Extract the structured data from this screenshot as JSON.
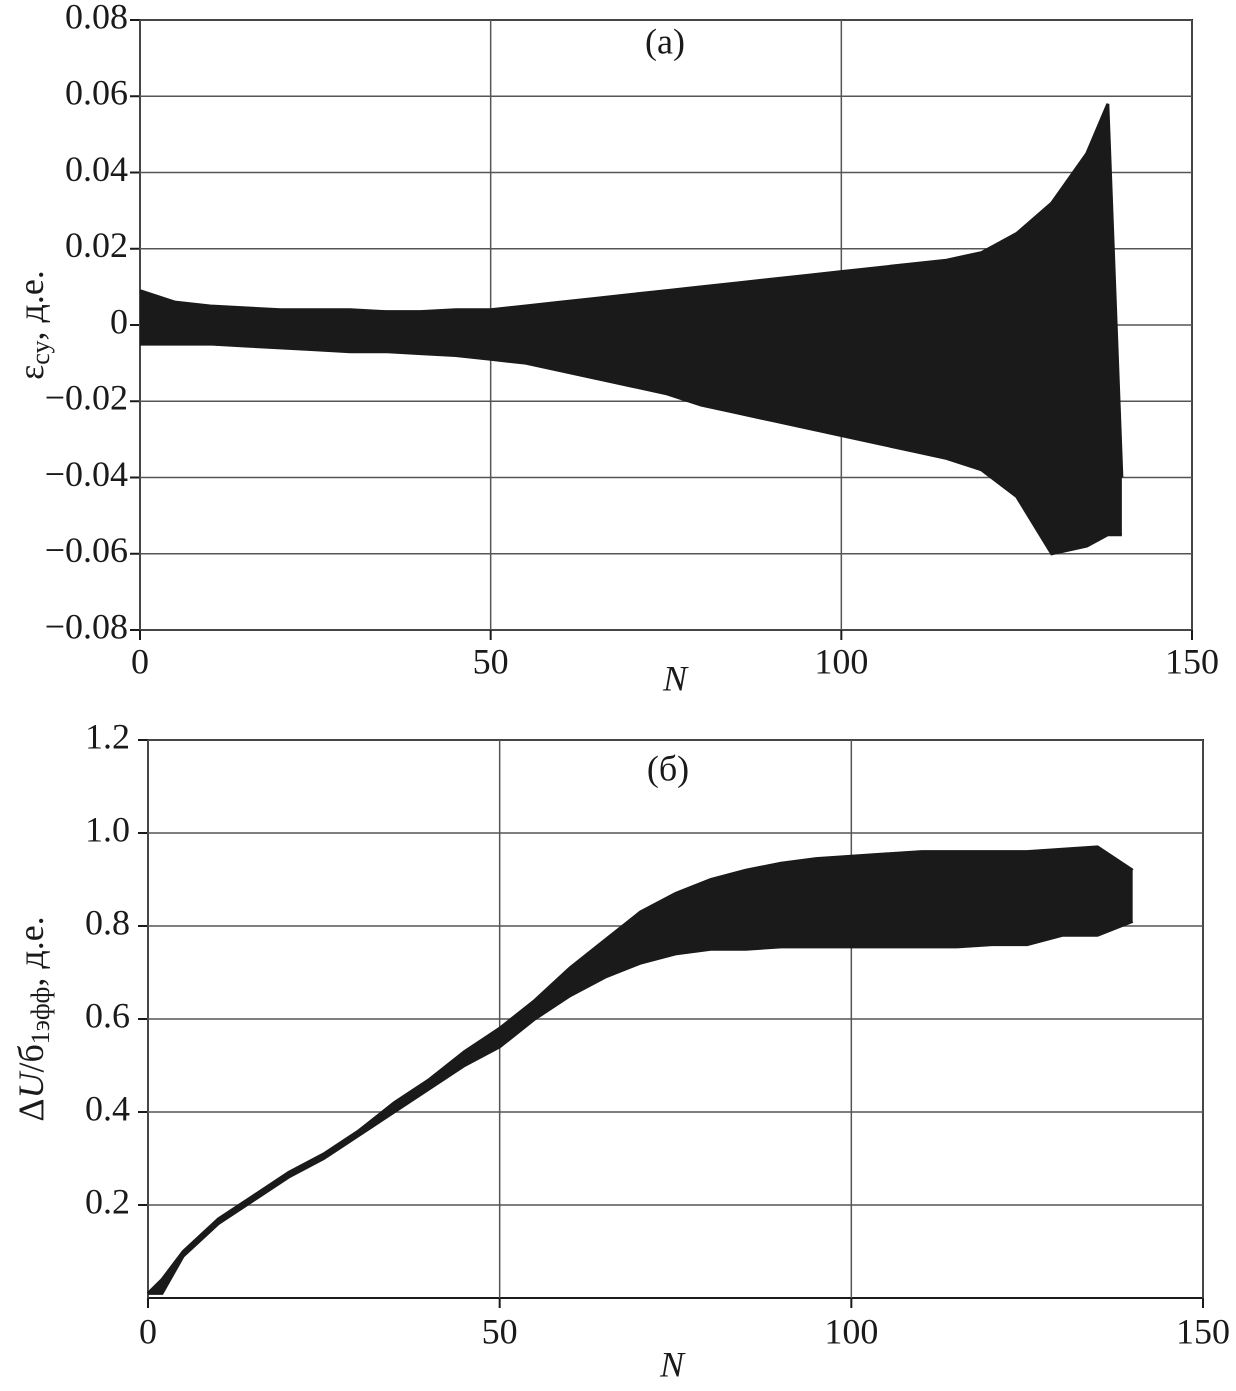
{
  "chart_data": [
    {
      "type": "band",
      "annotation": "(a)",
      "xlabel": "N",
      "ylabel": [
        {
          "text": "ε"
        },
        {
          "text": "су",
          "sub": true
        },
        {
          "text": ", д.е."
        }
      ],
      "color": "#1a1a1a",
      "x": [
        0,
        5,
        10,
        15,
        20,
        25,
        30,
        35,
        40,
        45,
        50,
        55,
        60,
        65,
        70,
        75,
        80,
        85,
        90,
        95,
        100,
        105,
        110,
        115,
        120,
        125,
        130,
        135,
        138,
        140
      ],
      "upper": [
        0.009,
        0.006,
        0.005,
        0.0045,
        0.004,
        0.004,
        0.004,
        0.0035,
        0.0035,
        0.004,
        0.004,
        0.005,
        0.006,
        0.007,
        0.008,
        0.009,
        0.01,
        0.011,
        0.012,
        0.013,
        0.014,
        0.015,
        0.016,
        0.017,
        0.019,
        0.024,
        0.032,
        0.045,
        0.058,
        -0.04
      ],
      "lower": [
        -0.005,
        -0.005,
        -0.005,
        -0.0055,
        -0.006,
        -0.0065,
        -0.007,
        -0.007,
        -0.0075,
        -0.008,
        -0.009,
        -0.01,
        -0.012,
        -0.014,
        -0.016,
        -0.018,
        -0.021,
        -0.023,
        -0.025,
        -0.027,
        -0.029,
        -0.031,
        -0.033,
        -0.035,
        -0.038,
        -0.045,
        -0.06,
        -0.058,
        -0.055,
        -0.055
      ],
      "xlim": [
        0,
        150
      ],
      "xticks": [
        0,
        50,
        100,
        150
      ],
      "ylim": [
        -0.08,
        0.08
      ],
      "yticks": [
        {
          "value": -0.08,
          "label": "−0.08"
        },
        {
          "value": -0.06,
          "label": "−0.06"
        },
        {
          "value": -0.04,
          "label": "−0.04"
        },
        {
          "value": -0.02,
          "label": "−0.02"
        },
        0,
        0.02,
        0.04,
        0.06,
        0.08
      ],
      "grid": true
    },
    {
      "type": "band",
      "annotation": "(б)",
      "xlabel": "N",
      "ylabel": [
        {
          "text": "Δ"
        },
        {
          "text": "U",
          "italic": true
        },
        {
          "text": "/б"
        },
        {
          "text": "1эфф",
          "sub": true
        },
        {
          "text": ", д.е."
        }
      ],
      "color": "#1a1a1a",
      "x": [
        0,
        2,
        5,
        10,
        15,
        20,
        25,
        30,
        35,
        40,
        45,
        50,
        55,
        60,
        65,
        70,
        75,
        80,
        85,
        90,
        95,
        100,
        105,
        110,
        115,
        120,
        125,
        130,
        135,
        140
      ],
      "upper": [
        0.01,
        0.04,
        0.1,
        0.17,
        0.22,
        0.27,
        0.31,
        0.36,
        0.42,
        0.47,
        0.53,
        0.58,
        0.64,
        0.71,
        0.77,
        0.83,
        0.87,
        0.9,
        0.92,
        0.935,
        0.945,
        0.95,
        0.955,
        0.96,
        0.96,
        0.96,
        0.96,
        0.965,
        0.97,
        0.92
      ],
      "lower": [
        0.01,
        0.01,
        0.09,
        0.16,
        0.21,
        0.26,
        0.3,
        0.35,
        0.4,
        0.45,
        0.5,
        0.54,
        0.6,
        0.65,
        0.69,
        0.72,
        0.74,
        0.75,
        0.75,
        0.755,
        0.755,
        0.755,
        0.755,
        0.755,
        0.755,
        0.76,
        0.76,
        0.78,
        0.78,
        0.81
      ],
      "xlim": [
        0,
        150
      ],
      "xticks": [
        0,
        50,
        100,
        150
      ],
      "ylim": [
        0,
        1.2
      ],
      "yticks": [
        0.2,
        0.4,
        0.6,
        0.8,
        {
          "value": 1,
          "label": "1.0"
        },
        1.2
      ],
      "grid": true
    }
  ]
}
